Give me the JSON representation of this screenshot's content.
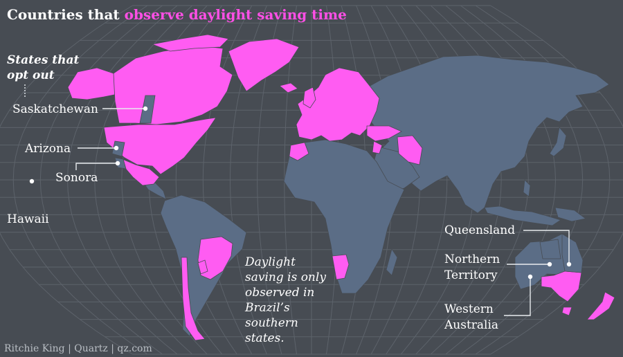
{
  "title": {
    "prefix": "Countries that",
    "highlight": "observe daylight saving time"
  },
  "opt_out_heading": {
    "line1": "States that",
    "line2": "opt out"
  },
  "labels": {
    "saskatchewan": "Saskatchewan",
    "arizona": "Arizona",
    "sonora": "Sonora",
    "hawaii": "Hawaii",
    "queensland": "Queensland",
    "northern_territory_1": "Northern",
    "northern_territory_2": "Territory",
    "western_australia_1": "Western",
    "western_australia_2": "Australia"
  },
  "brazil_note": [
    "Daylight",
    "saving is only",
    "observed in",
    "Brazil’s",
    "southern",
    "states."
  ],
  "credit": "Ritchie King | Quartz | qz.com",
  "colors": {
    "background": "#474c53",
    "land": "#5b6d86",
    "dst": "#ff5cf2",
    "grid": "#5d636b",
    "text": "#ffffff",
    "title_highlight": "#ff4fe6"
  },
  "legend": {
    "observes_dst": "magenta",
    "no_dst": "slate blue"
  }
}
